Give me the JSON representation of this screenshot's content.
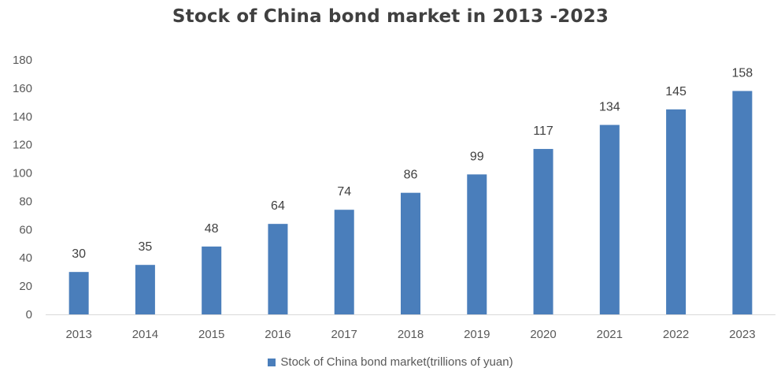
{
  "chart_data": {
    "type": "bar",
    "title": "Stock of China bond market in 2013 -2023",
    "xlabel": "",
    "ylabel": "",
    "categories": [
      "2013",
      "2014",
      "2015",
      "2016",
      "2017",
      "2018",
      "2019",
      "2020",
      "2021",
      "2022",
      "2023"
    ],
    "series": [
      {
        "name": "Stock of China bond market(trillions of yuan)",
        "values": [
          30,
          35,
          48,
          64,
          74,
          86,
          99,
          117,
          134,
          145,
          158
        ],
        "color": "#4A7EBB"
      }
    ],
    "ylim": [
      0,
      180
    ],
    "yticks": [
      0,
      20,
      40,
      60,
      80,
      100,
      120,
      140,
      160,
      180
    ],
    "grid": false,
    "legend_position": "bottom",
    "data_labels": true
  }
}
